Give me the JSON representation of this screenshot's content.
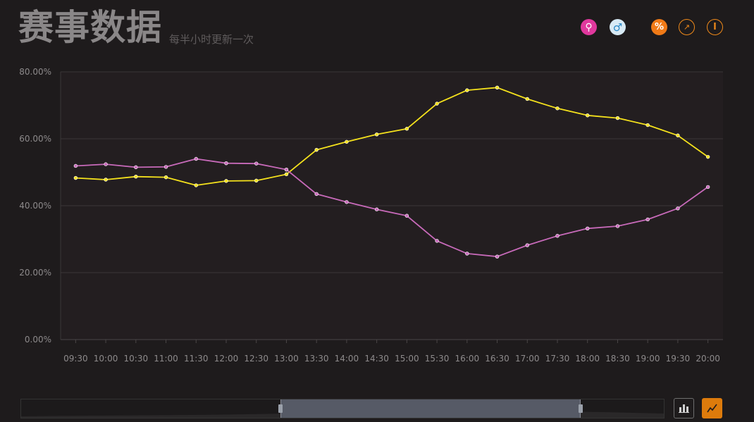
{
  "header": {
    "title": "赛事数据",
    "subtitle": "每半小时更新一次"
  },
  "toolbar": {
    "icons": [
      {
        "name": "female-icon",
        "glyph": "⚲",
        "color": "#e0389d"
      },
      {
        "name": "male-icon",
        "glyph": "♂",
        "color": "#2c8ac8"
      },
      {
        "name": "percent-icon",
        "glyph": "%",
        "color": "#f07a17"
      },
      {
        "name": "trend-icon",
        "glyph": "↗",
        "color": "#f08a1a"
      },
      {
        "name": "clock-icon",
        "glyph": "l",
        "color": "#f08a1a"
      }
    ]
  },
  "chart_data": {
    "type": "line",
    "title": "",
    "xlabel": "",
    "ylabel": "",
    "ylim": [
      0,
      80
    ],
    "y_ticks": [
      "0.00%",
      "20.00%",
      "40.00%",
      "60.00%",
      "80.00%"
    ],
    "grid": true,
    "categories": [
      "09:30",
      "10:00",
      "10:30",
      "11:00",
      "11:30",
      "12:00",
      "12:30",
      "13:00",
      "13:30",
      "14:00",
      "14:30",
      "15:00",
      "15:30",
      "16:00",
      "16:30",
      "17:00",
      "17:30",
      "18:00",
      "18:30",
      "19:00",
      "19:30",
      "20:00"
    ],
    "series": [
      {
        "color": "#f5e21c",
        "values": [
          48.3,
          47.8,
          48.7,
          48.5,
          46.1,
          47.4,
          47.5,
          49.4,
          56.7,
          59.1,
          61.3,
          63.0,
          70.5,
          74.5,
          75.3,
          71.9,
          69.1,
          67.0,
          66.2,
          64.1,
          61.0,
          54.6
        ]
      },
      {
        "color": "#c86aba",
        "values": [
          51.9,
          52.4,
          51.5,
          51.6,
          54.0,
          52.7,
          52.6,
          50.8,
          43.5,
          41.1,
          38.9,
          37.0,
          29.5,
          25.7,
          24.8,
          28.2,
          31.0,
          33.2,
          33.9,
          35.9,
          39.2,
          45.6
        ]
      }
    ]
  },
  "controls": {
    "bar_button_icon": "bar-chart-icon",
    "line_button_icon": "line-chart-icon",
    "accent": "#dd7b0c"
  }
}
